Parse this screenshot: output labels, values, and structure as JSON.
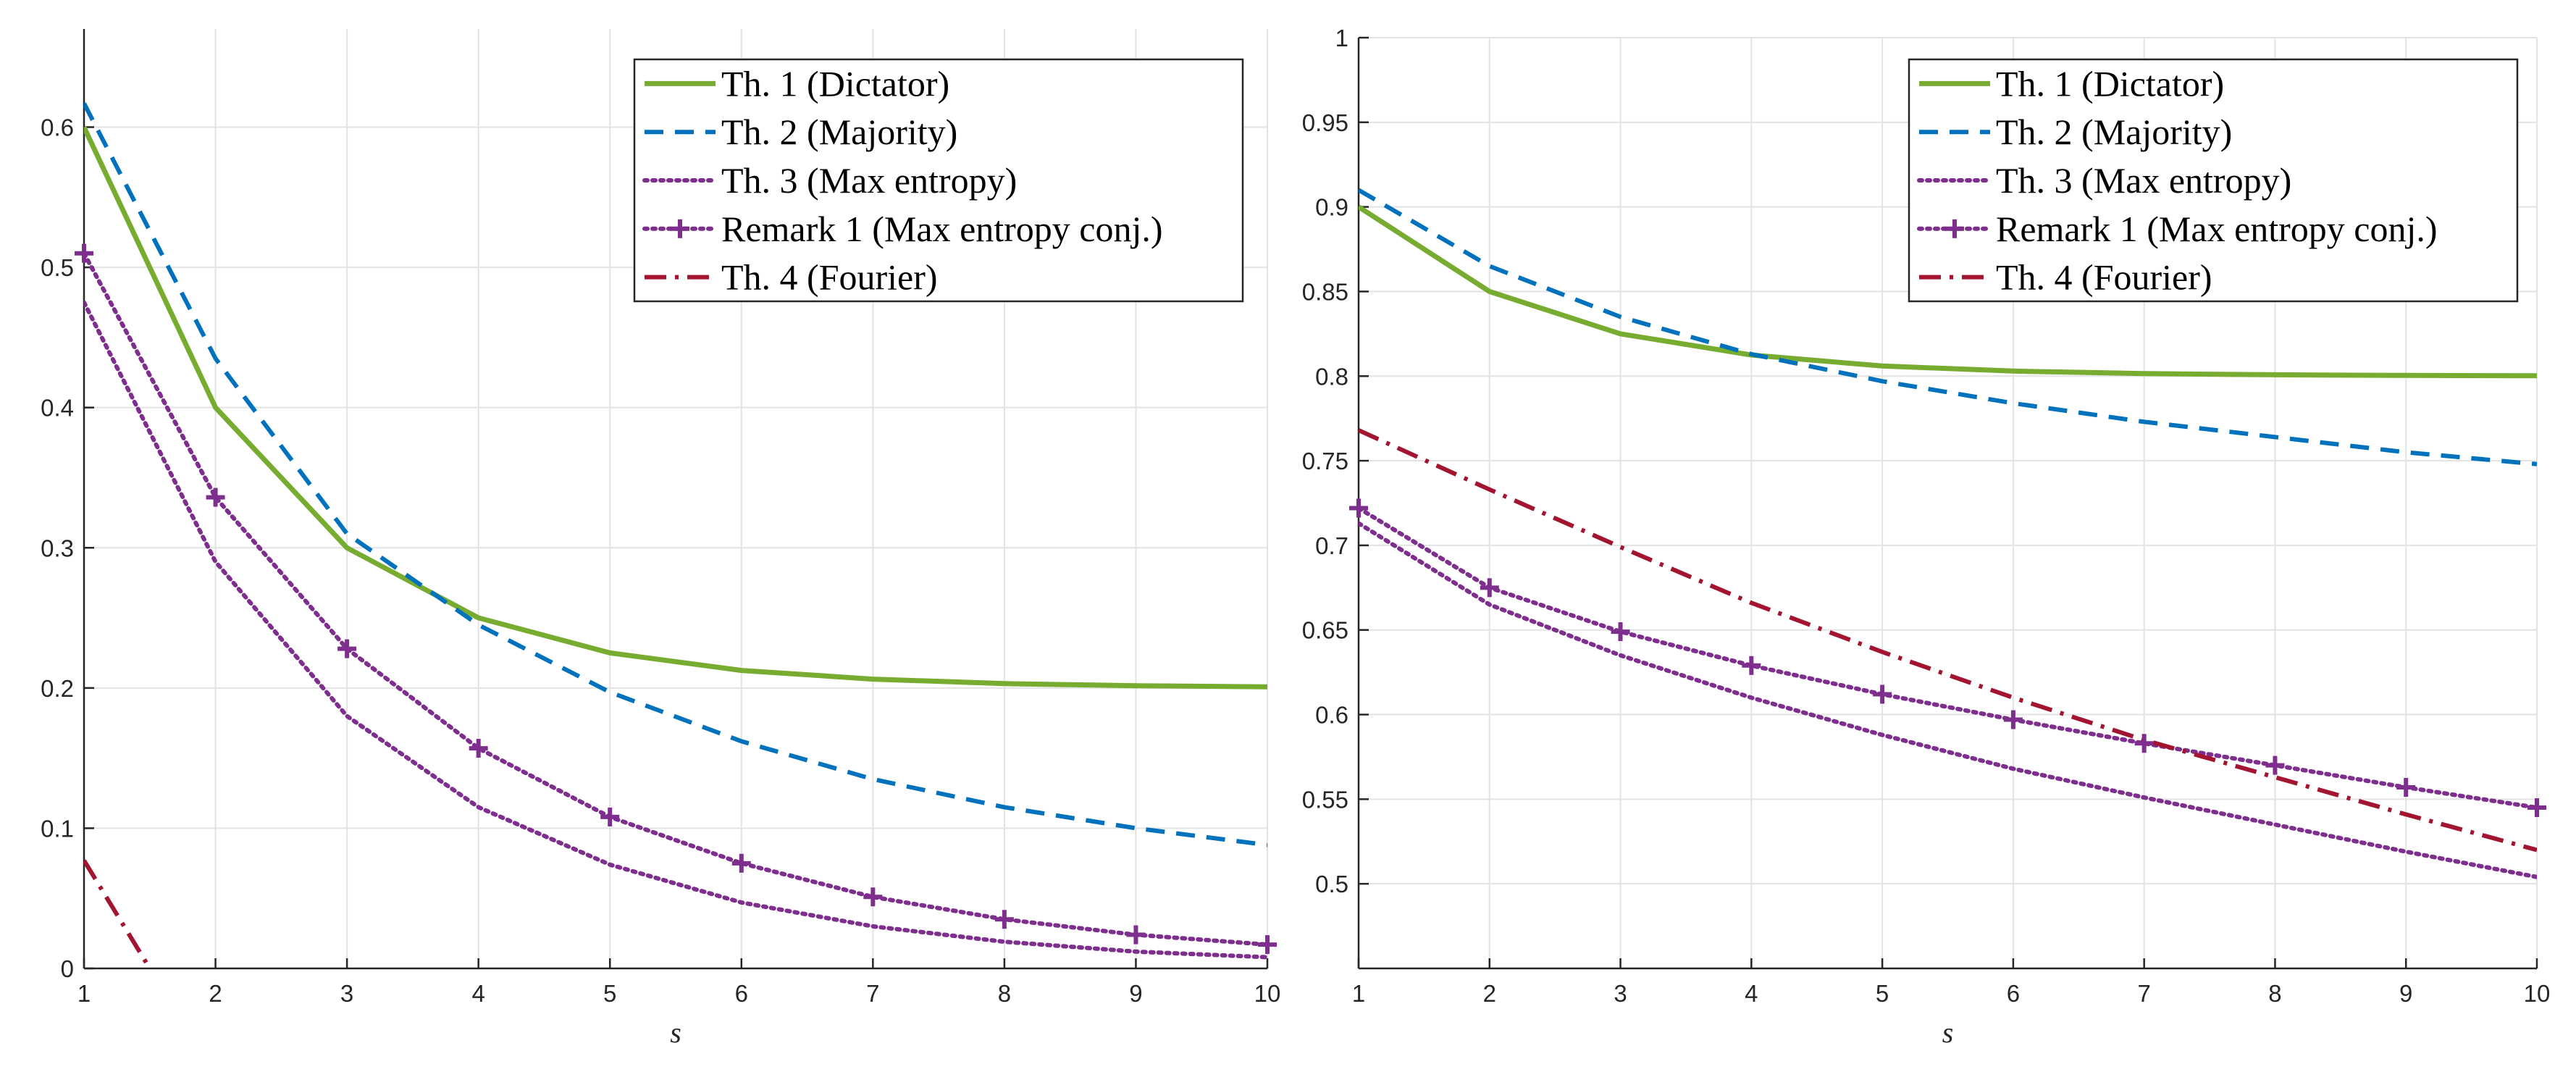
{
  "chart_data": [
    {
      "type": "line",
      "title": "",
      "xlabel": "s",
      "ylabel": "",
      "xlim": [
        1,
        10
      ],
      "ylim": [
        0,
        0.67
      ],
      "xticks": [
        1,
        2,
        3,
        4,
        5,
        6,
        7,
        8,
        9,
        10
      ],
      "yticks": [
        0,
        0.1,
        0.2,
        0.3,
        0.4,
        0.5,
        0.6
      ],
      "ytick_labels": [
        "0",
        "0.1",
        "0.2",
        "0.3",
        "0.4",
        "0.5",
        "0.6"
      ],
      "grid": true,
      "legend_position": "top-right",
      "series": [
        {
          "name": "Th. 1 (Dictator)",
          "color": "#77AC30",
          "style": "solid",
          "marker": "none",
          "x": [
            1,
            2,
            3,
            4,
            5,
            6,
            7,
            8,
            9,
            10
          ],
          "y": [
            0.6,
            0.4,
            0.3,
            0.25,
            0.225,
            0.2125,
            0.2063,
            0.2031,
            0.2016,
            0.2008
          ]
        },
        {
          "name": "Th. 2 (Majority)",
          "color": "#0072BD",
          "style": "dashed",
          "marker": "none",
          "x": [
            1,
            2,
            3,
            4,
            5,
            6,
            7,
            8,
            9,
            10
          ],
          "y": [
            0.617,
            0.435,
            0.31,
            0.245,
            0.197,
            0.162,
            0.135,
            0.115,
            0.1,
            0.088
          ]
        },
        {
          "name": "Th. 3 (Max entropy)",
          "color": "#7E2F8E",
          "style": "dotted",
          "marker": "none",
          "x": [
            1,
            2,
            3,
            4,
            5,
            6,
            7,
            8,
            9,
            10
          ],
          "y": [
            0.475,
            0.29,
            0.18,
            0.115,
            0.074,
            0.047,
            0.03,
            0.019,
            0.012,
            0.008
          ]
        },
        {
          "name": "Remark 1 (Max entropy conj.)",
          "color": "#7E2F8E",
          "style": "dotted",
          "marker": "plus",
          "x": [
            1,
            2,
            3,
            4,
            5,
            6,
            7,
            8,
            9,
            10
          ],
          "y": [
            0.51,
            0.336,
            0.228,
            0.157,
            0.108,
            0.075,
            0.051,
            0.035,
            0.024,
            0.017
          ]
        },
        {
          "name": "Th. 4 (Fourier)",
          "color": "#A2142F",
          "style": "dashdot",
          "marker": "none",
          "x": [
            1,
            1.5
          ],
          "y": [
            0.077,
            0.0
          ]
        }
      ]
    },
    {
      "type": "line",
      "title": "",
      "xlabel": "s",
      "ylabel": "",
      "xlim": [
        1,
        10
      ],
      "ylim": [
        0.45,
        1.0
      ],
      "xticks": [
        1,
        2,
        3,
        4,
        5,
        6,
        7,
        8,
        9,
        10
      ],
      "yticks": [
        0.5,
        0.55,
        0.6,
        0.65,
        0.7,
        0.75,
        0.8,
        0.85,
        0.9,
        0.95,
        1
      ],
      "ytick_labels": [
        "0.5",
        "0.55",
        "0.6",
        "0.65",
        "0.7",
        "0.75",
        "0.8",
        "0.85",
        "0.9",
        "0.95",
        "1"
      ],
      "grid": true,
      "legend_position": "top-right",
      "series": [
        {
          "name": "Th. 1 (Dictator)",
          "color": "#77AC30",
          "style": "solid",
          "marker": "none",
          "x": [
            1,
            2,
            3,
            4,
            5,
            6,
            7,
            8,
            9,
            10
          ],
          "y": [
            0.9,
            0.85,
            0.825,
            0.8125,
            0.806,
            0.803,
            0.8015,
            0.8008,
            0.8004,
            0.8002
          ]
        },
        {
          "name": "Th. 2 (Majority)",
          "color": "#0072BD",
          "style": "dashed",
          "marker": "none",
          "x": [
            1,
            2,
            3,
            4,
            5,
            6,
            7,
            8,
            9,
            10
          ],
          "y": [
            0.91,
            0.865,
            0.835,
            0.813,
            0.797,
            0.784,
            0.773,
            0.764,
            0.755,
            0.748
          ]
        },
        {
          "name": "Th. 3 (Max entropy)",
          "color": "#7E2F8E",
          "style": "dotted",
          "marker": "none",
          "x": [
            1,
            2,
            3,
            4,
            5,
            6,
            7,
            8,
            9,
            10
          ],
          "y": [
            0.713,
            0.665,
            0.635,
            0.61,
            0.588,
            0.568,
            0.551,
            0.535,
            0.519,
            0.504
          ]
        },
        {
          "name": "Remark 1 (Max entropy conj.)",
          "color": "#7E2F8E",
          "style": "dotted",
          "marker": "plus",
          "x": [
            1,
            2,
            3,
            4,
            5,
            6,
            7,
            8,
            9,
            10
          ],
          "y": [
            0.722,
            0.675,
            0.649,
            0.629,
            0.612,
            0.597,
            0.583,
            0.57,
            0.557,
            0.545
          ]
        },
        {
          "name": "Th. 4 (Fourier)",
          "color": "#A2142F",
          "style": "dashdot",
          "marker": "none",
          "x": [
            1,
            2,
            3,
            4,
            5,
            6,
            7,
            8,
            9,
            10
          ],
          "y": [
            0.768,
            0.733,
            0.699,
            0.666,
            0.637,
            0.61,
            0.585,
            0.563,
            0.541,
            0.52
          ]
        }
      ]
    }
  ]
}
